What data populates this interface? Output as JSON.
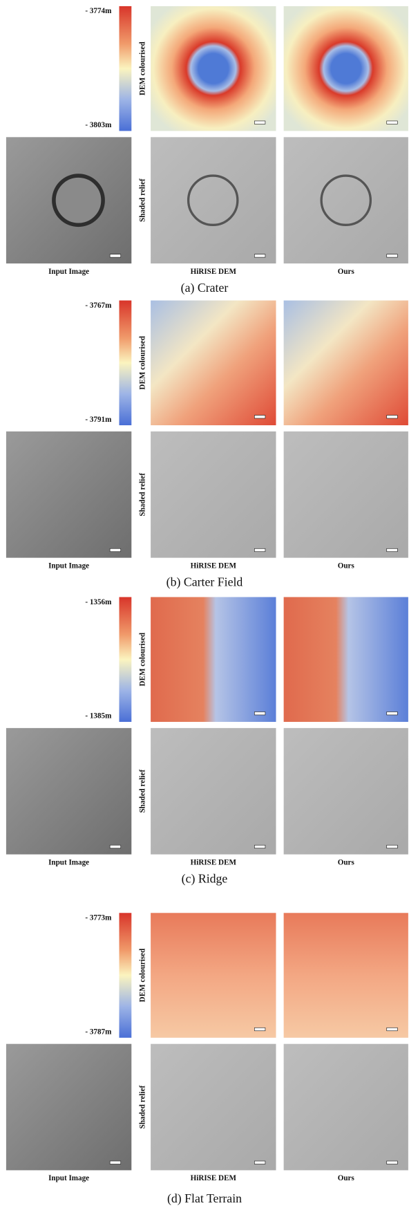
{
  "figure": {
    "panels": [
      {
        "scale_top": "- 3774m",
        "scale_bottom": "- 3803m",
        "row_labels": [
          "DEM colourised",
          "Shaded relief"
        ],
        "column_labels": [
          "Input Image",
          "HiRISE DEM",
          "Ours"
        ],
        "caption": "(a) Crater"
      },
      {
        "scale_top": "- 3767m",
        "scale_bottom": "- 3791m",
        "row_labels": [
          "DEM colourised",
          "Shaded relief"
        ],
        "column_labels": [
          "Input Image",
          "HiRISE DEM",
          "Ours"
        ],
        "caption": "(b) Carter Field"
      },
      {
        "scale_top": "- 1356m",
        "scale_bottom": "- 1385m",
        "row_labels": [
          "DEM colourised",
          "Shaded relief"
        ],
        "column_labels": [
          "Input Image",
          "HiRISE DEM",
          "Ours"
        ],
        "caption": "(c) Ridge"
      },
      {
        "scale_top": "- 3773m",
        "scale_bottom": "- 3787m",
        "row_labels": [
          "DEM colourised",
          "Shaded relief"
        ],
        "column_labels": [
          "Input Image",
          "HiRISE DEM",
          "Ours"
        ],
        "caption": "(d) Flat Terrain"
      }
    ]
  }
}
